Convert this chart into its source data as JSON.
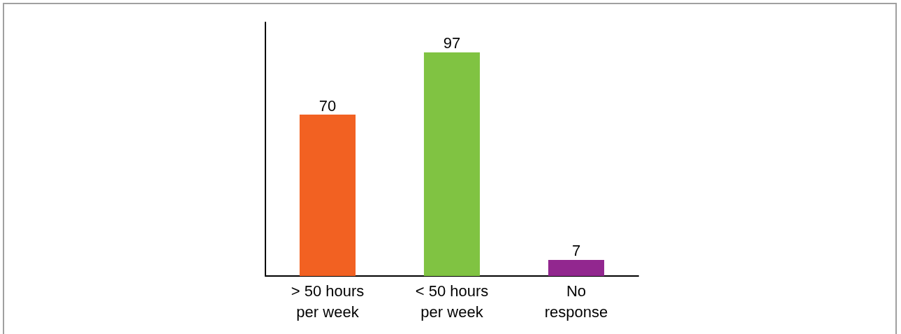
{
  "chart_data": {
    "type": "bar",
    "categories": [
      "> 50 hours\nper week",
      "< 50 hours\nper week",
      "No\nresponse"
    ],
    "values": [
      70,
      97,
      7
    ],
    "colors": [
      "#f26122",
      "#80c342",
      "#92278f"
    ],
    "ylim": [
      0,
      110
    ],
    "tick_labels": "x",
    "data_labels": true
  }
}
